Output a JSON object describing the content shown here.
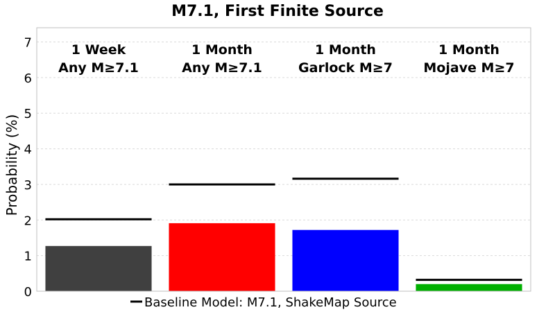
{
  "chart_data": {
    "type": "bar",
    "title": "M7.1, First Finite Source",
    "ylabel": "Probability (%)",
    "ylim": [
      0,
      7.4
    ],
    "yticks": [
      0,
      1,
      2,
      3,
      4,
      5,
      6,
      7
    ],
    "grid": true,
    "categories": [
      {
        "line1": "1 Week",
        "line2": "Any M≥7.1"
      },
      {
        "line1": "1 Month",
        "line2": "Any M≥7.1"
      },
      {
        "line1": "1 Month",
        "line2": "Garlock M≥7"
      },
      {
        "line1": "1 Month",
        "line2": "Mojave M≥7"
      }
    ],
    "values": [
      1.27,
      1.91,
      1.72,
      0.2
    ],
    "colors": [
      "#404040",
      "#ff0000",
      "#0000ff",
      "#00b000"
    ],
    "baseline": {
      "name": "Baseline Model: M7.1, ShakeMap Source",
      "values": [
        2.02,
        3.0,
        3.16,
        0.32
      ],
      "color": "#000000"
    },
    "legend_position": "bottom-center"
  }
}
